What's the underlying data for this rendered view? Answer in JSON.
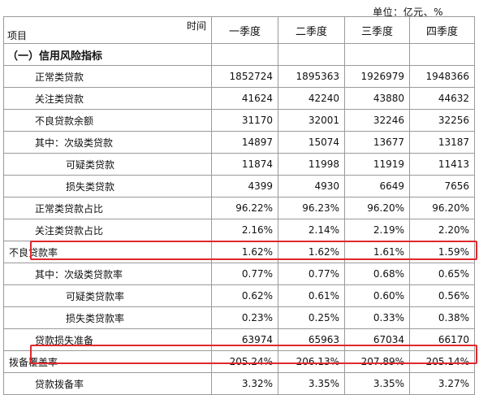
{
  "unit_label": "单位：亿元、%",
  "header": {
    "time_label": "时间",
    "item_label": "项目",
    "quarters": [
      "一季度",
      "二季度",
      "三季度",
      "四季度"
    ]
  },
  "section_title": "（一）信用风险指标",
  "rows": [
    {
      "label": "正常类贷款",
      "values": [
        "1852724",
        "1895363",
        "1926979",
        "1948366"
      ]
    },
    {
      "label": "关注类贷款",
      "values": [
        "41624",
        "42240",
        "43880",
        "44632"
      ]
    },
    {
      "label": "不良贷款余额",
      "values": [
        "31170",
        "32001",
        "32246",
        "32256"
      ]
    },
    {
      "label": "其中：次级类贷款",
      "values": [
        "14897",
        "15074",
        "13677",
        "13187"
      ]
    },
    {
      "label": "可疑类贷款",
      "values": [
        "11874",
        "11998",
        "11919",
        "11413"
      ]
    },
    {
      "label": "损失类贷款",
      "values": [
        "4399",
        "4930",
        "6649",
        "7656"
      ]
    },
    {
      "label": "正常类贷款占比",
      "values": [
        "96.22%",
        "96.23%",
        "96.20%",
        "96.20%"
      ]
    },
    {
      "label": "关注类贷款占比",
      "values": [
        "2.16%",
        "2.14%",
        "2.19%",
        "2.20%"
      ]
    },
    {
      "label": "不良贷款率",
      "values": [
        "1.62%",
        "1.62%",
        "1.61%",
        "1.59%"
      ]
    },
    {
      "label": "其中：次级类贷款率",
      "values": [
        "0.77%",
        "0.77%",
        "0.68%",
        "0.65%"
      ]
    },
    {
      "label": "可疑类贷款率",
      "values": [
        "0.62%",
        "0.61%",
        "0.60%",
        "0.56%"
      ]
    },
    {
      "label": "损失类贷款率",
      "values": [
        "0.23%",
        "0.25%",
        "0.33%",
        "0.38%"
      ]
    },
    {
      "label": "贷款损失准备",
      "values": [
        "63974",
        "65963",
        "67034",
        "66170"
      ]
    },
    {
      "label": "拨备覆盖率",
      "values": [
        "205.24%",
        "206.13%",
        "207.89%",
        "205.14%"
      ]
    },
    {
      "label": "贷款拨备率",
      "values": [
        "3.32%",
        "3.35%",
        "3.35%",
        "3.27%"
      ]
    }
  ],
  "highlight_color": "#e0282d"
}
